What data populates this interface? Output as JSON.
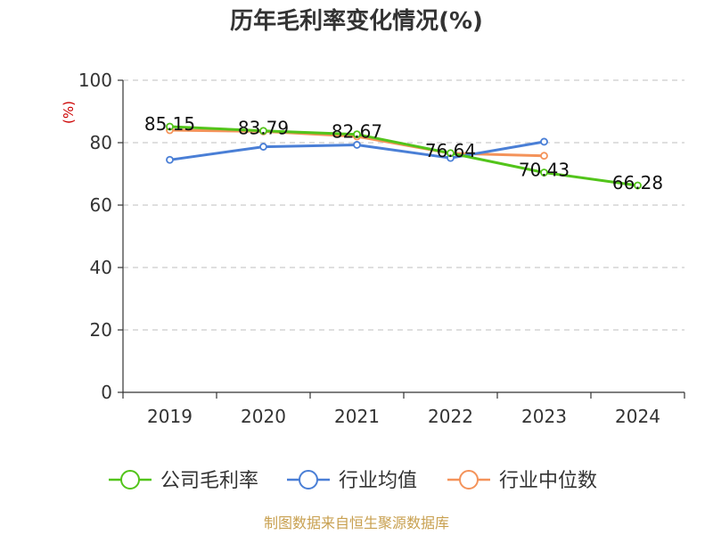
{
  "title": "历年毛利率变化情况(%)",
  "source": "制图数据来自恒生聚源数据库",
  "chart_data": {
    "type": "line",
    "title": "历年毛利率变化情况(%)",
    "ylabel": "(%)",
    "xlabel": "",
    "ylim": [
      0,
      100
    ],
    "yticks": [
      0,
      20,
      40,
      60,
      80,
      100
    ],
    "categories": [
      "2019",
      "2020",
      "2021",
      "2022",
      "2023",
      "2024"
    ],
    "grid": true,
    "legend_position": "bottom",
    "series": [
      {
        "name": "公司毛利率",
        "color": "#52c41a",
        "values": [
          85.15,
          83.79,
          82.67,
          76.64,
          70.43,
          66.28
        ],
        "labels": [
          "85.15",
          "83.79",
          "82.67",
          "76.64",
          "70.43",
          "66.28"
        ]
      },
      {
        "name": "行业均值",
        "color": "#4a7fd6",
        "values": [
          74.5,
          78.7,
          79.3,
          75.1,
          80.3,
          null
        ]
      },
      {
        "name": "行业中位数",
        "color": "#f4935a",
        "values": [
          84.0,
          83.6,
          82.0,
          76.6,
          75.8,
          null
        ]
      }
    ]
  }
}
